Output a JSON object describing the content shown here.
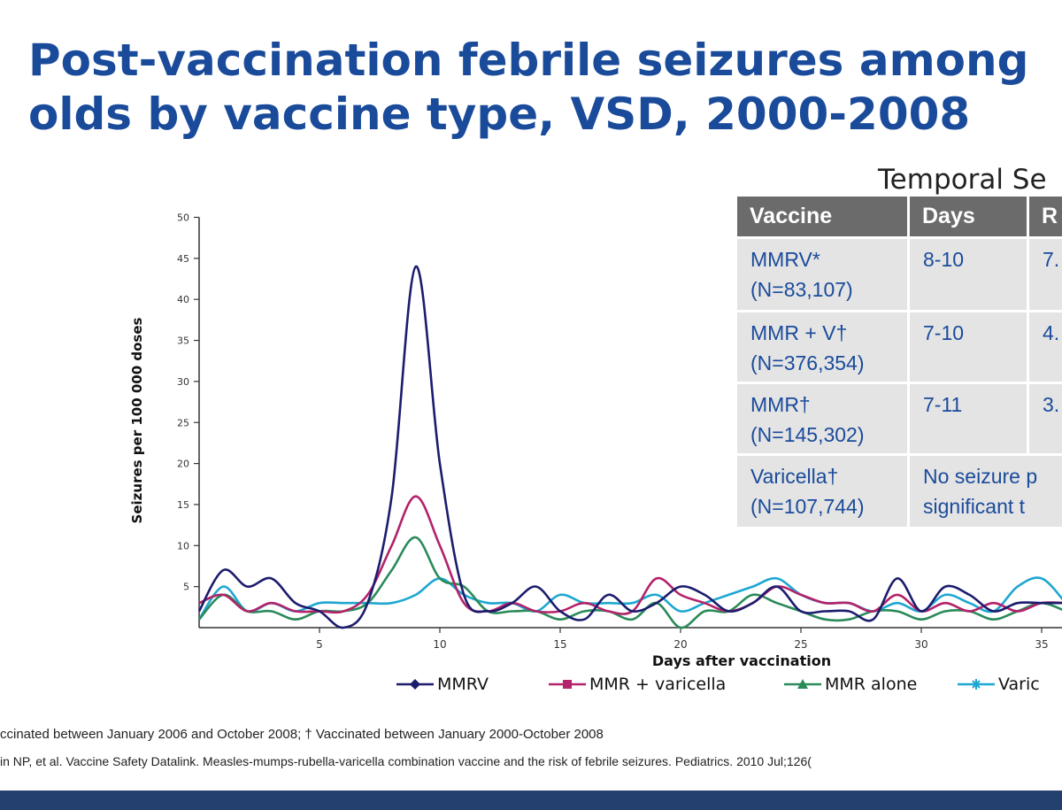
{
  "slide": {
    "title_line1": "Post-vaccination febrile seizures among",
    "title_line2": "olds by vaccine type, VSD, 2000-2008",
    "footnote1": "ccinated between January 2006 and October 2008; † Vaccinated between January 2000-October 2008",
    "footnote2": "in NP, et al. Vaccine Safety Datalink. Measles-mumps-rubella-varicella combination vaccine and the risk of febrile seizures. Pediatrics. 2010 Jul;126(",
    "colors": {
      "title": "#1a4b9b",
      "table_header": "#6b6b6b",
      "table_body": "#e4e4e4",
      "table_text": "#1a4b9b",
      "bottom_bar": "#24406e"
    }
  },
  "chart_data": {
    "type": "line",
    "title": "",
    "xlabel": "Days after vaccination",
    "ylabel": "Seizures per 100 000 doses",
    "xlim": [
      0,
      36
    ],
    "ylim": [
      0,
      50
    ],
    "xticks": [
      5,
      10,
      15,
      20,
      25,
      30,
      35
    ],
    "yticks": [
      5,
      10,
      15,
      20,
      25,
      30,
      35,
      40,
      45,
      50
    ],
    "x": [
      0,
      1,
      2,
      3,
      4,
      5,
      6,
      7,
      8,
      9,
      10,
      11,
      12,
      13,
      14,
      15,
      16,
      17,
      18,
      19,
      20,
      21,
      22,
      23,
      24,
      25,
      26,
      27,
      28,
      29,
      30,
      31,
      32,
      33,
      34,
      35,
      36
    ],
    "series": [
      {
        "name": "MMRV",
        "color": "#1c1c6e",
        "marker": "diamond",
        "values": [
          2,
          7,
          5,
          6,
          3,
          2,
          0,
          3,
          16,
          44,
          20,
          4,
          2,
          3,
          5,
          2,
          1,
          4,
          2,
          3,
          5,
          4,
          2,
          3,
          5,
          2,
          2,
          2,
          1,
          6,
          2,
          5,
          4,
          2,
          3,
          3,
          3
        ]
      },
      {
        "name": "MMR + varicella",
        "color": "#b3226a",
        "marker": "square",
        "values": [
          3,
          4,
          2,
          3,
          2,
          2,
          2,
          4,
          10,
          16,
          10,
          3,
          2,
          3,
          2,
          2,
          3,
          2,
          2,
          6,
          4,
          3,
          2,
          3,
          5,
          4,
          3,
          3,
          2,
          4,
          2,
          3,
          2,
          3,
          2,
          3,
          3
        ]
      },
      {
        "name": "MMR alone",
        "color": "#2a8a5a",
        "marker": "triangle",
        "values": [
          1,
          4,
          2,
          2,
          1,
          2,
          2,
          3,
          7,
          11,
          6,
          5,
          2,
          2,
          2,
          1,
          2,
          2,
          1,
          3,
          0,
          2,
          2,
          4,
          3,
          2,
          1,
          1,
          2,
          2,
          1,
          2,
          2,
          1,
          2,
          3,
          2
        ]
      },
      {
        "name": "Varic",
        "color": "#1ea7d1",
        "marker": "asterisk",
        "values": [
          1,
          5,
          2,
          3,
          2,
          3,
          3,
          3,
          3,
          4,
          6,
          4,
          3,
          3,
          2,
          4,
          3,
          3,
          3,
          4,
          2,
          3,
          4,
          5,
          6,
          4,
          3,
          3,
          2,
          3,
          2,
          4,
          3,
          2,
          5,
          6,
          3
        ]
      }
    ],
    "legend": "bottom",
    "grid": false
  },
  "table": {
    "title": "Temporal Se",
    "headers": [
      "Vaccine",
      "Days",
      "R"
    ],
    "rows": [
      {
        "vaccine": [
          "MMRV*",
          "(N=83,107)"
        ],
        "days": [
          "8-10"
        ],
        "r": [
          "7."
        ]
      },
      {
        "vaccine": [
          "MMR + V†",
          "(N=376,354)"
        ],
        "days": [
          "7-10"
        ],
        "r": [
          "4."
        ]
      },
      {
        "vaccine": [
          "MMR†",
          "(N=145,302)"
        ],
        "days": [
          "7-11"
        ],
        "r": [
          "3."
        ]
      },
      {
        "vaccine": [
          "Varicella†",
          "(N=107,744)"
        ],
        "days": [
          "No seizure p",
          "significant t"
        ],
        "r": []
      }
    ]
  }
}
